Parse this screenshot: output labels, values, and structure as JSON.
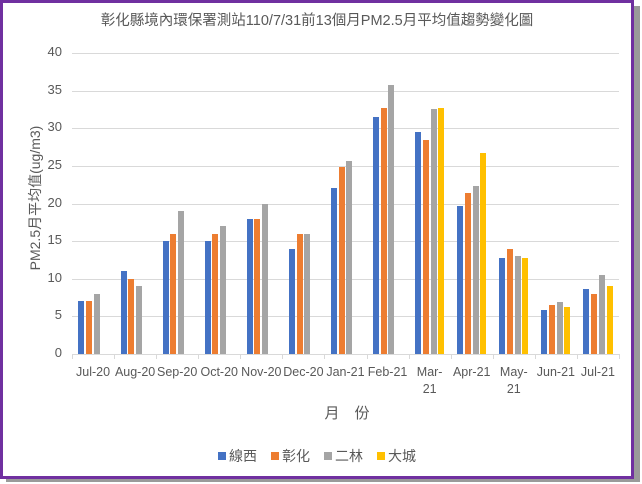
{
  "chart_data": {
    "type": "bar",
    "title": "彰化縣境內環保署測站110/7/31前13個月PM2.5月平均值趨勢變化圖",
    "xlabel": "月　份",
    "ylabel": "PM2.5月平均值(ug/m3)",
    "ylim": [
      0,
      40
    ],
    "yticks": [
      0,
      5,
      10,
      15,
      20,
      25,
      30,
      35,
      40
    ],
    "grid": true,
    "legend_position": "bottom",
    "categories": [
      "Jul-20",
      "Aug-20",
      "Sep-20",
      "Oct-20",
      "Nov-20",
      "Dec-20",
      "Jan-21",
      "Feb-21",
      "Mar-21",
      "Apr-21",
      "May-21",
      "Jun-21",
      "Jul-21"
    ],
    "series": [
      {
        "name": "線西",
        "color": "#4472c4",
        "values": [
          7,
          11,
          15,
          15,
          18,
          14,
          22.1,
          31.5,
          29.5,
          19.7,
          12.8,
          5.9,
          8.7
        ]
      },
      {
        "name": "彰化",
        "color": "#ed7d31",
        "values": [
          7,
          10,
          16,
          16,
          18,
          16,
          24.9,
          32.7,
          28.5,
          21.4,
          13.9,
          6.5,
          8.0
        ]
      },
      {
        "name": "二林",
        "color": "#a5a5a5",
        "values": [
          8,
          9,
          19,
          17,
          20,
          16,
          25.6,
          35.7,
          32.6,
          22.3,
          13.0,
          6.9,
          10.5
        ]
      },
      {
        "name": "大城",
        "color": "#ffc000",
        "values": [
          null,
          null,
          null,
          null,
          null,
          null,
          null,
          null,
          32.7,
          26.7,
          12.8,
          6.3,
          9.1
        ]
      }
    ]
  },
  "frame": {
    "border_color": "#7030a0"
  },
  "x_labels_display": [
    "Jul-20",
    "Aug-20",
    "Sep-20",
    "Oct-20",
    "Nov-20",
    "Dec-20",
    "Jan-21",
    "Feb-21",
    "Mar-\n21",
    "Apr-21",
    "May-\n21",
    "Jun-21",
    "Jul-21"
  ]
}
